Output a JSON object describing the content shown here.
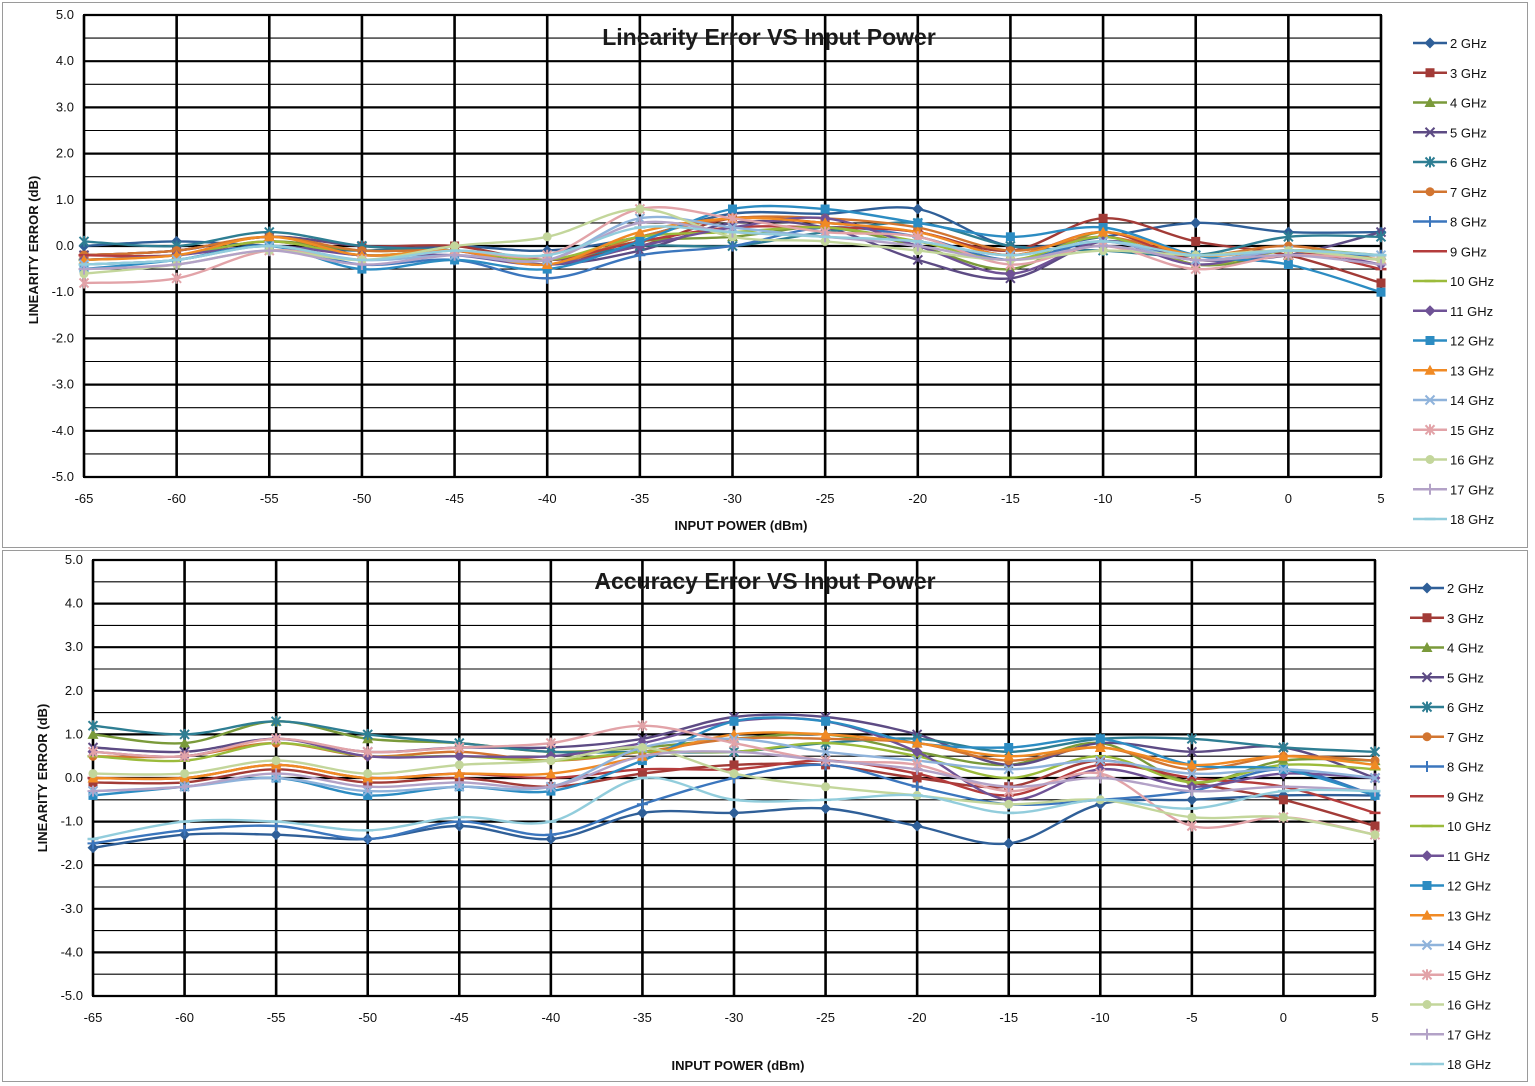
{
  "chart_data": [
    {
      "type": "line",
      "title": "Linearity Error VS Input Power",
      "xlabel": "INPUT POWER (dBm)",
      "ylabel": "LINEARITY ERROR (dB)",
      "xlim": [
        -65,
        5
      ],
      "ylim": [
        -5,
        5
      ],
      "x": [
        -65,
        -60,
        -55,
        -50,
        -45,
        -40,
        -35,
        -30,
        -25,
        -20,
        -15,
        -10,
        -5,
        0,
        5
      ],
      "xticks": [
        "-65",
        "-60",
        "-55",
        "-50",
        "-45",
        "-40",
        "-35",
        "-30",
        "-25",
        "-20",
        "-15",
        "-10",
        "-5",
        "0",
        "5"
      ],
      "yticks": [
        "5.0",
        "4.0",
        "3.0",
        "2.0",
        "1.0",
        "0.0",
        "-1.0",
        "-2.0",
        "-3.0",
        "-4.0",
        "-5.0"
      ],
      "grid": true,
      "legend": "right",
      "series": [
        {
          "name": "2 GHz",
          "color": "#2f5f98",
          "marker": "diamond",
          "values": [
            0.0,
            0.1,
            0.0,
            -0.1,
            0.0,
            -0.1,
            0.2,
            0.7,
            0.7,
            0.8,
            0.0,
            0.2,
            0.5,
            0.3,
            0.3
          ]
        },
        {
          "name": "3 GHz",
          "color": "#a23b37",
          "marker": "square",
          "values": [
            -0.2,
            -0.1,
            0.2,
            0.0,
            0.0,
            -0.3,
            0.0,
            0.6,
            0.5,
            0.3,
            -0.1,
            0.6,
            0.1,
            -0.2,
            -0.8
          ]
        },
        {
          "name": "4 GHz",
          "color": "#7a9a3a",
          "marker": "triangle",
          "values": [
            -0.3,
            -0.2,
            0.1,
            -0.1,
            -0.1,
            -0.3,
            0.1,
            0.2,
            0.4,
            0.0,
            -0.5,
            0.3,
            -0.4,
            -0.2,
            -0.2
          ]
        },
        {
          "name": "5 GHz",
          "color": "#5d4b84",
          "marker": "x",
          "values": [
            -0.2,
            -0.1,
            0.2,
            0.0,
            -0.1,
            -0.4,
            -0.1,
            0.5,
            0.4,
            -0.3,
            -0.7,
            0.1,
            -0.3,
            -0.2,
            0.3
          ]
        },
        {
          "name": "6 GHz",
          "color": "#2e7e93",
          "marker": "star",
          "values": [
            0.1,
            0.0,
            0.3,
            0.0,
            -0.1,
            -0.3,
            0.0,
            0.0,
            0.3,
            0.5,
            0.0,
            -0.1,
            -0.2,
            0.2,
            0.2
          ]
        },
        {
          "name": "7 GHz",
          "color": "#d27530",
          "marker": "circle",
          "values": [
            -0.2,
            -0.1,
            0.2,
            -0.1,
            -0.1,
            -0.4,
            0.2,
            0.6,
            0.6,
            0.4,
            -0.1,
            0.2,
            -0.2,
            0.0,
            -0.3
          ]
        },
        {
          "name": "8 GHz",
          "color": "#3b76bd",
          "marker": "plus",
          "values": [
            -0.4,
            -0.3,
            0.0,
            -0.4,
            -0.3,
            -0.7,
            -0.2,
            0.0,
            0.4,
            0.2,
            -0.3,
            0.1,
            -0.3,
            -0.2,
            -0.2
          ]
        },
        {
          "name": "9 GHz",
          "color": "#b43c3c",
          "marker": "dash",
          "values": [
            -0.2,
            -0.2,
            0.1,
            -0.2,
            -0.1,
            -0.3,
            0.1,
            0.4,
            0.4,
            0.3,
            -0.2,
            0.3,
            -0.3,
            -0.1,
            -0.5
          ]
        },
        {
          "name": "10 GHz",
          "color": "#9bbb3b",
          "marker": "dash",
          "values": [
            -0.3,
            -0.2,
            0.1,
            -0.2,
            -0.1,
            -0.3,
            0.2,
            0.3,
            0.4,
            0.1,
            -0.3,
            0.2,
            -0.4,
            -0.1,
            -0.2
          ]
        },
        {
          "name": "11 GHz",
          "color": "#6f5296",
          "marker": "diamond",
          "values": [
            -0.3,
            -0.2,
            0.0,
            -0.2,
            -0.2,
            -0.4,
            0.0,
            0.4,
            0.6,
            0.0,
            -0.6,
            0.1,
            -0.4,
            -0.1,
            -0.4
          ]
        },
        {
          "name": "12 GHz",
          "color": "#2c8cc2",
          "marker": "square",
          "values": [
            -0.5,
            -0.3,
            0.0,
            -0.5,
            -0.3,
            -0.5,
            0.1,
            0.8,
            0.8,
            0.5,
            0.2,
            0.4,
            -0.2,
            -0.4,
            -1.0
          ]
        },
        {
          "name": "13 GHz",
          "color": "#f08a24",
          "marker": "triangle",
          "values": [
            -0.3,
            -0.2,
            0.2,
            -0.2,
            -0.1,
            -0.4,
            0.3,
            0.6,
            0.5,
            0.3,
            -0.2,
            0.3,
            -0.2,
            -0.1,
            -0.3
          ]
        },
        {
          "name": "14 GHz",
          "color": "#8fb3db",
          "marker": "x",
          "values": [
            -0.4,
            -0.3,
            0.0,
            -0.3,
            -0.2,
            -0.3,
            0.6,
            0.4,
            0.2,
            0.1,
            -0.2,
            0.1,
            -0.3,
            -0.1,
            -0.2
          ]
        },
        {
          "name": "15 GHz",
          "color": "#e2a3a8",
          "marker": "star",
          "values": [
            -0.8,
            -0.7,
            -0.1,
            -0.3,
            -0.1,
            -0.2,
            0.8,
            0.6,
            0.3,
            0.2,
            -0.4,
            0.0,
            -0.5,
            -0.2,
            -0.3
          ]
        },
        {
          "name": "16 GHz",
          "color": "#c3d69b",
          "marker": "circle",
          "values": [
            -0.6,
            -0.4,
            -0.1,
            -0.3,
            0.0,
            0.2,
            0.8,
            0.2,
            0.1,
            -0.1,
            -0.3,
            -0.1,
            -0.2,
            -0.1,
            -0.3
          ]
        },
        {
          "name": "17 GHz",
          "color": "#b3a2c7",
          "marker": "plus",
          "values": [
            -0.5,
            -0.4,
            -0.1,
            -0.4,
            -0.2,
            -0.3,
            0.5,
            0.3,
            0.2,
            0.0,
            -0.3,
            0.0,
            -0.3,
            -0.2,
            -0.4
          ]
        },
        {
          "name": "18 GHz",
          "color": "#92cddc",
          "marker": "dash",
          "values": [
            -0.4,
            -0.3,
            0.0,
            -0.3,
            -0.1,
            -0.2,
            0.4,
            0.3,
            0.2,
            0.1,
            -0.2,
            0.1,
            -0.2,
            -0.1,
            -0.2
          ]
        }
      ]
    },
    {
      "type": "line",
      "title": "Accuracy Error VS Input Power",
      "xlabel": "INPUT POWER (dBm)",
      "ylabel": "LINEARITY ERROR (dB)",
      "xlim": [
        -65,
        5
      ],
      "ylim": [
        -5,
        5
      ],
      "x": [
        -65,
        -60,
        -55,
        -50,
        -45,
        -40,
        -35,
        -30,
        -25,
        -20,
        -15,
        -10,
        -5,
        0,
        5
      ],
      "xticks": [
        "-65",
        "-60",
        "-55",
        "-50",
        "-45",
        "-40",
        "-35",
        "-30",
        "-25",
        "-20",
        "-15",
        "-10",
        "-5",
        "0",
        "5"
      ],
      "yticks": [
        "5.0",
        "4.0",
        "3.0",
        "2.0",
        "1.0",
        "0.0",
        "-1.0",
        "-2.0",
        "-3.0",
        "-4.0",
        "-5.0"
      ],
      "grid": true,
      "legend": "right",
      "series": [
        {
          "name": "2 GHz",
          "color": "#2f5f98",
          "marker": "diamond",
          "values": [
            -1.6,
            -1.3,
            -1.3,
            -1.4,
            -1.1,
            -1.4,
            -0.8,
            -0.8,
            -0.7,
            -1.1,
            -1.5,
            -0.6,
            -0.5,
            -0.4,
            -0.4
          ]
        },
        {
          "name": "3 GHz",
          "color": "#a23b37",
          "marker": "square",
          "values": [
            -0.1,
            -0.1,
            0.2,
            -0.1,
            0.0,
            -0.2,
            0.1,
            0.3,
            0.3,
            0.0,
            -0.2,
            0.4,
            -0.1,
            -0.5,
            -1.1
          ]
        },
        {
          "name": "4 GHz",
          "color": "#7a9a3a",
          "marker": "triangle",
          "values": [
            1.0,
            0.8,
            1.3,
            0.9,
            0.8,
            0.6,
            0.7,
            0.9,
            1.0,
            0.6,
            0.3,
            0.8,
            -0.1,
            0.4,
            0.4
          ]
        },
        {
          "name": "5 GHz",
          "color": "#5d4b84",
          "marker": "x",
          "values": [
            0.7,
            0.6,
            0.9,
            0.6,
            0.7,
            0.7,
            0.9,
            1.4,
            1.4,
            1.0,
            0.3,
            0.8,
            0.6,
            0.7,
            0.0
          ]
        },
        {
          "name": "6 GHz",
          "color": "#2e7e93",
          "marker": "star",
          "values": [
            1.2,
            1.0,
            1.3,
            1.0,
            0.8,
            0.6,
            0.6,
            0.6,
            0.8,
            0.9,
            0.6,
            0.9,
            0.9,
            0.7,
            0.6
          ]
        },
        {
          "name": "7 GHz",
          "color": "#d27530",
          "marker": "circle",
          "values": [
            0.5,
            0.5,
            0.8,
            0.5,
            0.6,
            0.4,
            0.6,
            0.9,
            0.9,
            0.8,
            0.4,
            0.7,
            0.2,
            0.5,
            0.4
          ]
        },
        {
          "name": "8 GHz",
          "color": "#3b76bd",
          "marker": "plus",
          "values": [
            -1.5,
            -1.2,
            -1.1,
            -1.4,
            -1.0,
            -1.3,
            -0.6,
            0.0,
            0.3,
            -0.2,
            -0.6,
            -0.5,
            -0.3,
            0.2,
            -0.4
          ]
        },
        {
          "name": "9 GHz",
          "color": "#b43c3c",
          "marker": "dash",
          "values": [
            0.0,
            0.0,
            0.3,
            0.0,
            0.1,
            0.0,
            0.2,
            0.2,
            0.4,
            0.1,
            -0.4,
            0.3,
            0.0,
            -0.2,
            -0.8
          ]
        },
        {
          "name": "10 GHz",
          "color": "#9bbb3b",
          "marker": "dash",
          "values": [
            0.5,
            0.4,
            0.8,
            0.5,
            0.5,
            0.4,
            0.6,
            0.6,
            0.8,
            0.5,
            0.0,
            0.5,
            -0.1,
            0.3,
            0.2
          ]
        },
        {
          "name": "11 GHz",
          "color": "#6f5296",
          "marker": "diamond",
          "values": [
            0.6,
            0.5,
            0.9,
            0.5,
            0.5,
            0.5,
            0.8,
            1.3,
            1.3,
            0.6,
            -0.5,
            0.2,
            -0.2,
            0.1,
            0.0
          ]
        },
        {
          "name": "12 GHz",
          "color": "#2c8cc2",
          "marker": "square",
          "values": [
            -0.4,
            -0.2,
            0.0,
            -0.4,
            -0.2,
            -0.3,
            0.4,
            1.3,
            1.3,
            0.8,
            0.7,
            0.9,
            0.3,
            0.2,
            -0.4
          ]
        },
        {
          "name": "13 GHz",
          "color": "#f08a24",
          "marker": "triangle",
          "values": [
            0.0,
            0.0,
            0.3,
            0.0,
            0.1,
            0.1,
            0.5,
            1.0,
            1.0,
            0.8,
            0.5,
            0.7,
            0.3,
            0.5,
            0.3
          ]
        },
        {
          "name": "14 GHz",
          "color": "#8fb3db",
          "marker": "x",
          "values": [
            -0.3,
            -0.2,
            0.0,
            -0.3,
            -0.2,
            -0.2,
            0.7,
            0.9,
            0.6,
            0.4,
            0.2,
            0.4,
            0.1,
            0.2,
            0.0
          ]
        },
        {
          "name": "15 GHz",
          "color": "#e2a3a8",
          "marker": "star",
          "values": [
            0.6,
            0.5,
            0.9,
            0.6,
            0.7,
            0.8,
            1.2,
            0.8,
            0.4,
            0.3,
            -0.3,
            0.1,
            -1.1,
            -0.9,
            -1.3
          ]
        },
        {
          "name": "16 GHz",
          "color": "#c3d69b",
          "marker": "circle",
          "values": [
            0.1,
            0.1,
            0.4,
            0.1,
            0.3,
            0.4,
            0.7,
            0.1,
            -0.2,
            -0.4,
            -0.6,
            -0.5,
            -0.9,
            -0.9,
            -1.3
          ]
        },
        {
          "name": "17 GHz",
          "color": "#b3a2c7",
          "marker": "plus",
          "values": [
            -0.3,
            -0.2,
            0.1,
            -0.2,
            -0.1,
            -0.2,
            0.5,
            0.6,
            0.4,
            0.2,
            -0.2,
            0.0,
            -0.3,
            -0.2,
            -0.3
          ]
        },
        {
          "name": "18 GHz",
          "color": "#92cddc",
          "marker": "dash",
          "values": [
            -1.4,
            -1.0,
            -1.0,
            -1.2,
            -0.9,
            -1.0,
            0.0,
            -0.5,
            -0.5,
            -0.4,
            -0.8,
            -0.5,
            -0.7,
            -0.3,
            -0.3
          ]
        }
      ]
    }
  ]
}
